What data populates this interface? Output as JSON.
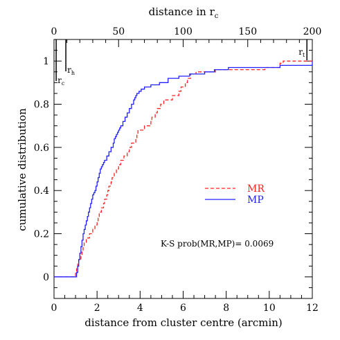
{
  "chart_data": {
    "type": "line",
    "xlabel": "distance from cluster centre (arcmin)",
    "top_xlabel_main": "distance in r",
    "top_xlabel_sub": "c",
    "ylabel": "cumulative distribution",
    "xlim": [
      0,
      12
    ],
    "ylim": [
      -0.1,
      1.1
    ],
    "top_xlim": [
      0,
      200
    ],
    "x_ticks": [
      0,
      2,
      4,
      6,
      8,
      10,
      12
    ],
    "x_tick_labels": [
      "0",
      "2",
      "4",
      "6",
      "8",
      "10",
      "12"
    ],
    "y_ticks": [
      0,
      0.2,
      0.4,
      0.6,
      0.8,
      1
    ],
    "y_tick_labels": [
      "0",
      "0.2",
      "0.4",
      "0.6",
      "0.8",
      "1"
    ],
    "top_ticks": [
      0,
      50,
      100,
      150,
      200
    ],
    "top_tick_labels": [
      "0",
      "50",
      "100",
      "150",
      "200"
    ],
    "grid": false,
    "legend_placement": "middle-right",
    "annotation": "K-S prob(MR,MP)= 0.0069",
    "markers": [
      {
        "name": "r",
        "sub": "c",
        "x": 0.1
      },
      {
        "name": "r",
        "sub": "h",
        "x": 0.55
      },
      {
        "name": "r",
        "sub": "t",
        "x": 11.75
      }
    ],
    "series": [
      {
        "name": "MR",
        "color": "#ff2020",
        "dash": "dashed",
        "x": [
          0,
          1.0,
          1.05,
          1.1,
          1.15,
          1.25,
          1.3,
          1.35,
          1.4,
          1.5,
          1.6,
          1.65,
          1.75,
          1.8,
          1.85,
          1.9,
          2.0,
          2.05,
          2.1,
          2.2,
          2.3,
          2.35,
          2.45,
          2.5,
          2.55,
          2.6,
          2.65,
          2.7,
          2.8,
          2.9,
          3.0,
          3.1,
          3.2,
          3.25,
          3.3,
          3.4,
          3.5,
          3.6,
          3.8,
          3.85,
          3.9,
          4.0,
          4.2,
          4.35,
          4.5,
          4.55,
          4.7,
          4.8,
          4.95,
          5.1,
          5.3,
          5.5,
          5.7,
          5.8,
          5.9,
          6.1,
          6.2,
          6.35,
          6.5,
          6.6,
          7.1,
          7.5,
          8.05,
          9.8,
          10.5,
          10.65,
          12
        ],
        "y": [
          0,
          0.02,
          0.04,
          0.06,
          0.08,
          0.1,
          0.12,
          0.14,
          0.16,
          0.18,
          0.18,
          0.2,
          0.2,
          0.22,
          0.22,
          0.24,
          0.26,
          0.28,
          0.3,
          0.32,
          0.34,
          0.36,
          0.38,
          0.4,
          0.42,
          0.42,
          0.44,
          0.46,
          0.48,
          0.5,
          0.52,
          0.54,
          0.54,
          0.56,
          0.56,
          0.58,
          0.6,
          0.62,
          0.64,
          0.66,
          0.68,
          0.68,
          0.7,
          0.7,
          0.72,
          0.74,
          0.76,
          0.78,
          0.8,
          0.82,
          0.82,
          0.84,
          0.84,
          0.86,
          0.88,
          0.9,
          0.92,
          0.94,
          0.94,
          0.95,
          0.95,
          0.96,
          0.96,
          0.97,
          0.99,
          1.0,
          1.0
        ]
      },
      {
        "name": "MP",
        "color": "#2020ff",
        "dash": "solid",
        "x": [
          0,
          1.05,
          1.1,
          1.15,
          1.2,
          1.25,
          1.3,
          1.35,
          1.4,
          1.45,
          1.5,
          1.55,
          1.6,
          1.65,
          1.7,
          1.75,
          1.8,
          1.85,
          1.9,
          1.95,
          2.0,
          2.05,
          2.1,
          2.15,
          2.2,
          2.25,
          2.3,
          2.35,
          2.45,
          2.55,
          2.65,
          2.75,
          2.8,
          2.85,
          2.9,
          2.95,
          3.0,
          3.05,
          3.1,
          3.2,
          3.3,
          3.4,
          3.5,
          3.6,
          3.7,
          3.75,
          3.8,
          3.85,
          3.95,
          4.05,
          4.2,
          4.5,
          4.9,
          5.3,
          5.8,
          6.3,
          7.0,
          7.45,
          8.1,
          10.5,
          12
        ],
        "y": [
          0,
          0.02,
          0.05,
          0.08,
          0.11,
          0.14,
          0.17,
          0.2,
          0.22,
          0.24,
          0.26,
          0.28,
          0.3,
          0.32,
          0.34,
          0.36,
          0.38,
          0.39,
          0.4,
          0.42,
          0.44,
          0.46,
          0.48,
          0.5,
          0.51,
          0.52,
          0.53,
          0.54,
          0.56,
          0.58,
          0.6,
          0.62,
          0.64,
          0.65,
          0.66,
          0.67,
          0.68,
          0.69,
          0.7,
          0.72,
          0.74,
          0.76,
          0.78,
          0.8,
          0.82,
          0.83,
          0.84,
          0.85,
          0.86,
          0.87,
          0.88,
          0.89,
          0.9,
          0.92,
          0.93,
          0.94,
          0.95,
          0.96,
          0.97,
          0.98,
          1.0
        ]
      }
    ]
  }
}
